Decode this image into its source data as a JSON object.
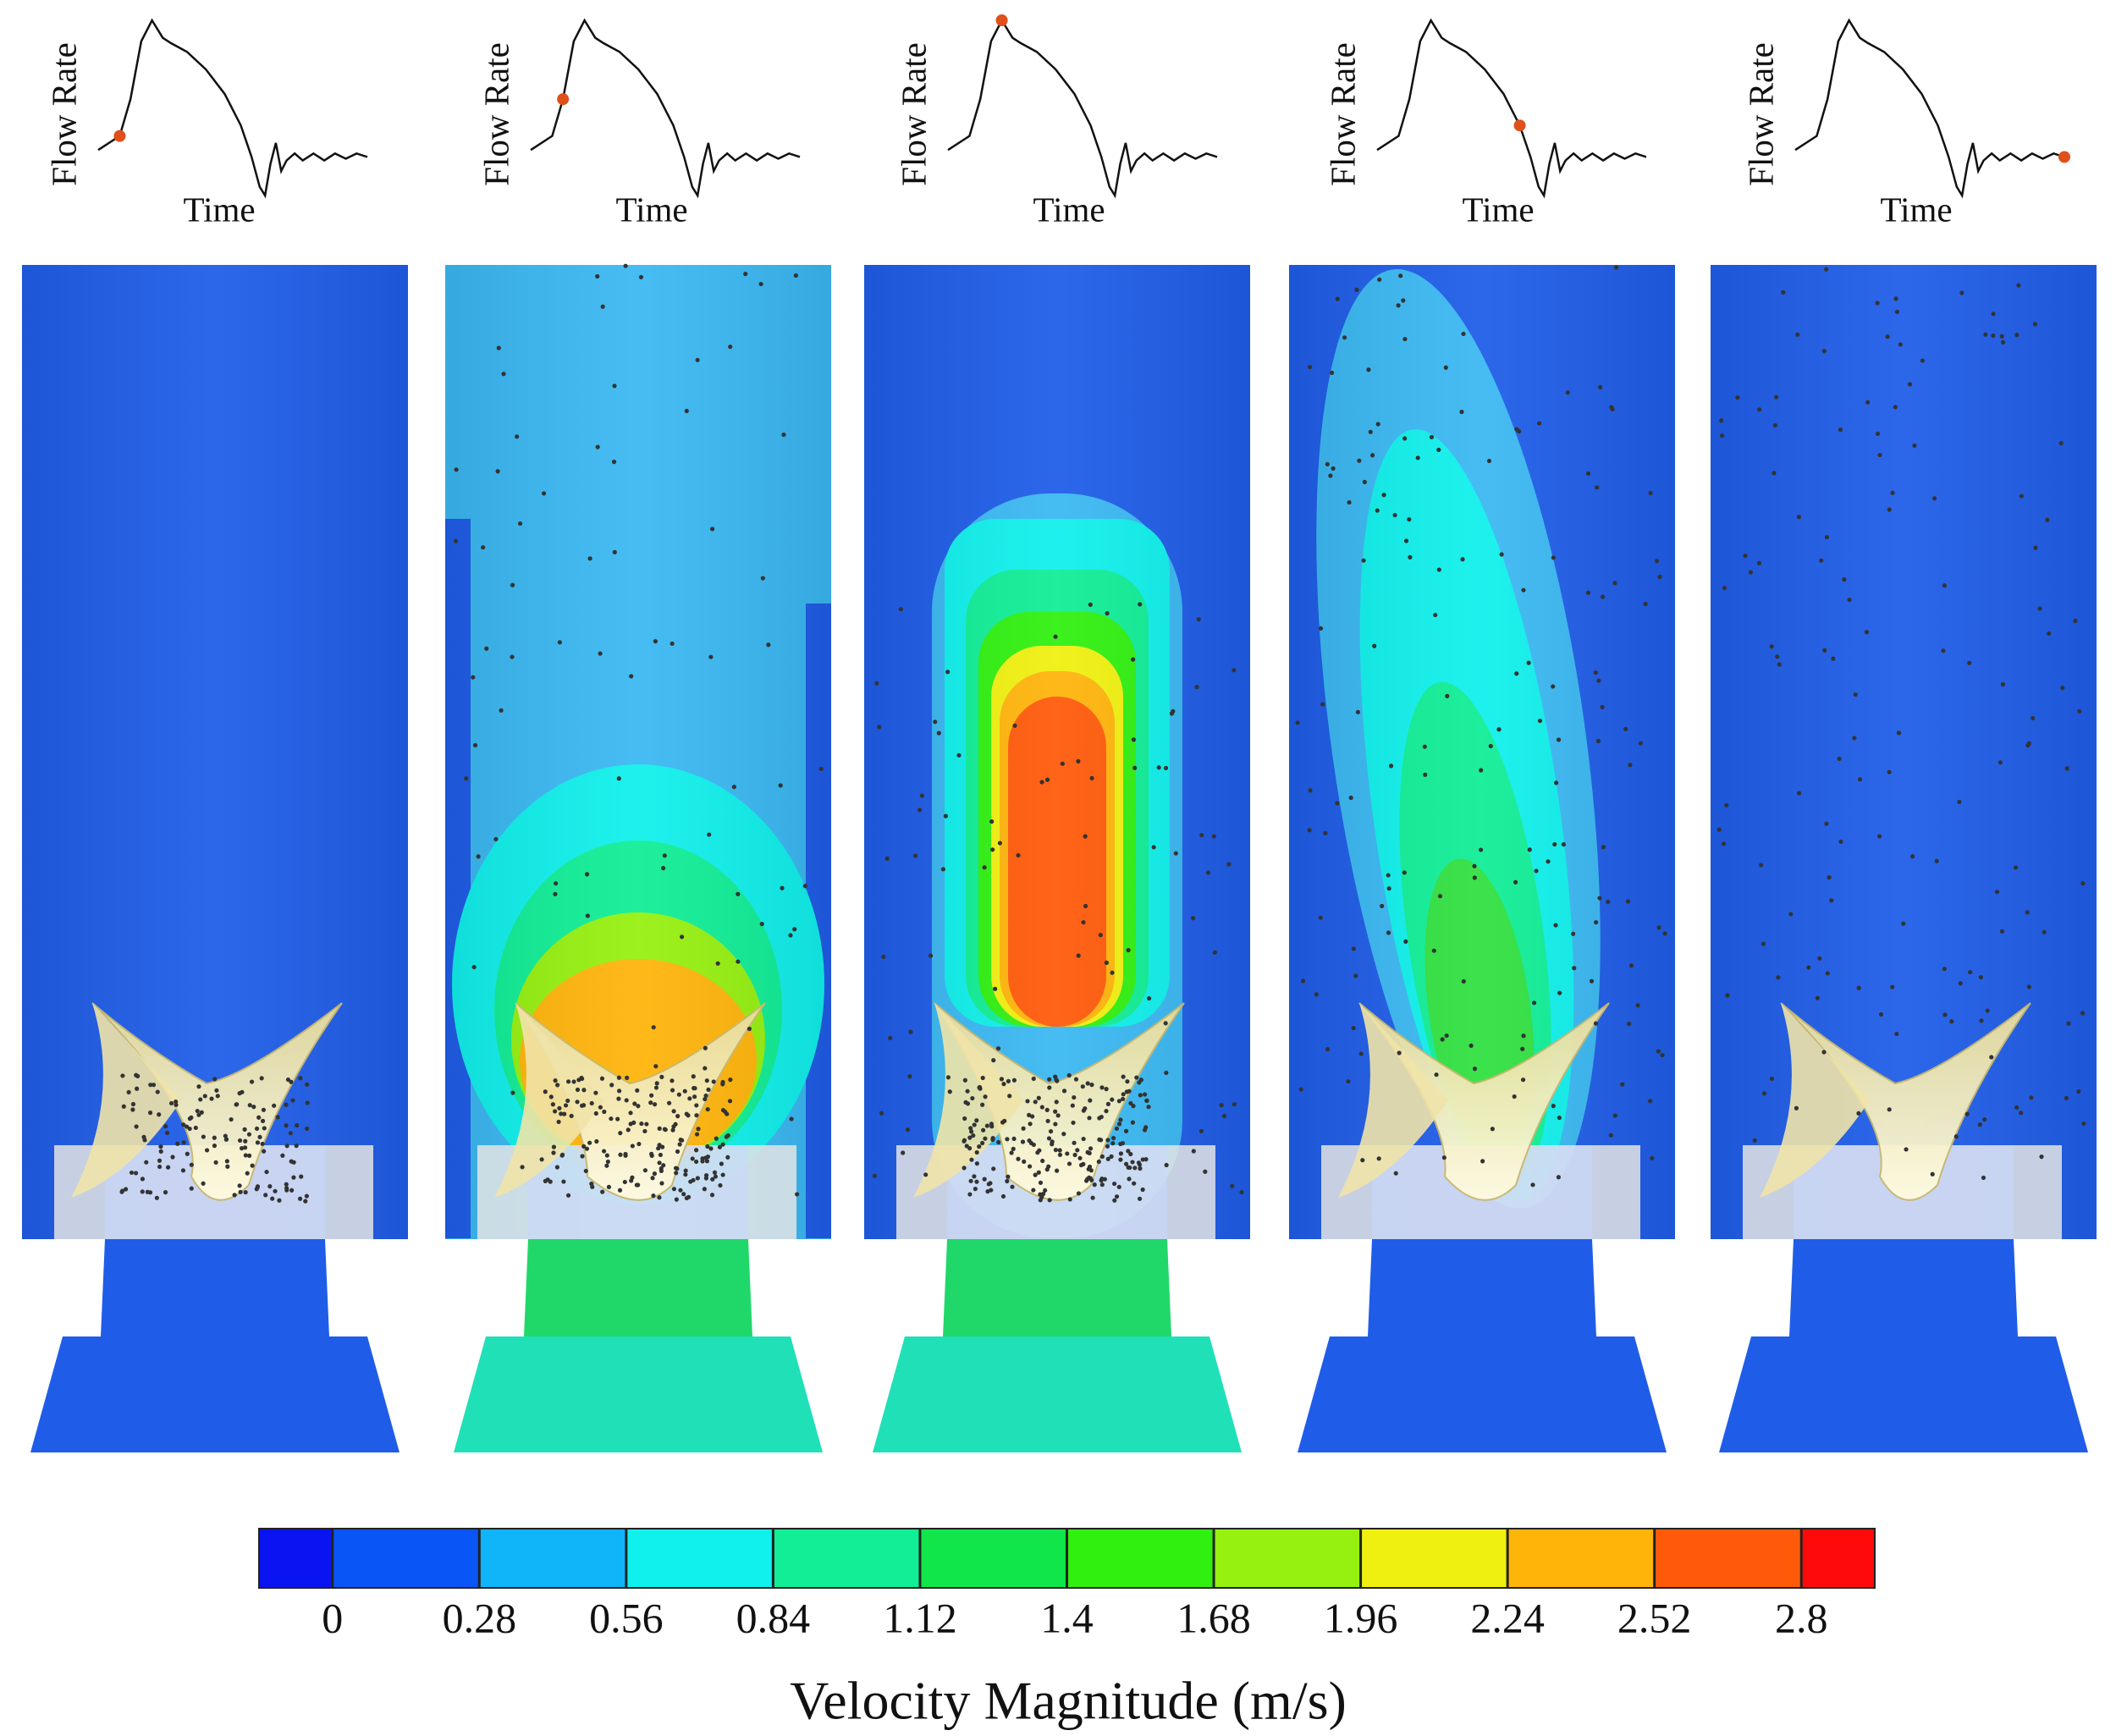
{
  "panels": [
    {
      "ylabel": "Flow Rate",
      "xlabel": "Time"
    },
    {
      "ylabel": "Flow Rate",
      "xlabel": "Time"
    },
    {
      "ylabel": "Flow Rate",
      "xlabel": "Time"
    },
    {
      "ylabel": "Flow Rate",
      "xlabel": "Time"
    },
    {
      "ylabel": "Flow Rate",
      "xlabel": "Time"
    }
  ],
  "colorbar": {
    "title": "Velocity Magnitude (m/s)",
    "lim": [
      -0.14,
      2.94
    ],
    "ticks": [
      0,
      0.28,
      0.56,
      0.84,
      1.12,
      1.4,
      1.68,
      1.96,
      2.24,
      2.52,
      2.8
    ],
    "colors": [
      "#0a14f0",
      "#0a55f5",
      "#10b4f8",
      "#10f0ec",
      "#10ee96",
      "#10e64a",
      "#30f010",
      "#96f010",
      "#f0f010",
      "#ffb40a",
      "#ff5a0a",
      "#ff0a0a"
    ]
  }
}
